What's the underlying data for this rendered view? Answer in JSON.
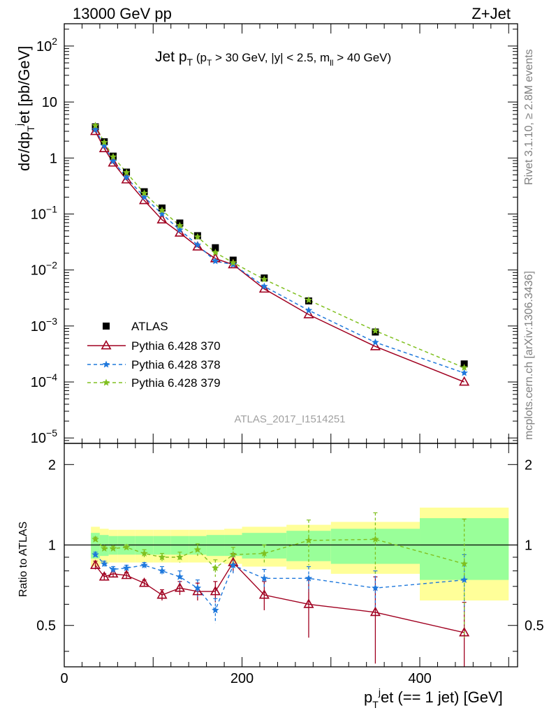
{
  "header": {
    "left": "13000 GeV pp",
    "right": "Z+Jet"
  },
  "plot_title": {
    "main": "Jet p",
    "main_sub": "T",
    "cuts_1": " (p",
    "cuts_1_sub": "T",
    "cuts_2": " > 30 GeV, |y| < 2.5, m",
    "cuts_2_sub": "ll",
    "cuts_3": " > 40 GeV)"
  },
  "side_labels": {
    "rivet": "Rivet 3.1.10, ≥ 2.8M events",
    "mcplots": "mcplots.cern.ch [arXiv:1306.3436]"
  },
  "watermark": "ATLAS_2017_I1514251",
  "y_axis_top": {
    "p1": "dσ/dp",
    "p1_sub": "T",
    "p1_sup": "j",
    "p2": "et [pb/GeV]"
  },
  "y_axis_bottom": "Ratio to ATLAS",
  "x_axis": {
    "p1": "p",
    "p1_sub": "T",
    "p1_sup": "j",
    "p2": "et (== 1 jet) [GeV]"
  },
  "top_ticks": [
    {
      "base": "10",
      "exp": "2"
    },
    {
      "base": "10",
      "exp": ""
    },
    {
      "base": "1",
      "exp": ""
    },
    {
      "base": "10",
      "exp": "−1"
    },
    {
      "base": "10",
      "exp": "−2"
    },
    {
      "base": "10",
      "exp": "−3"
    },
    {
      "base": "10",
      "exp": "−4"
    },
    {
      "base": "10",
      "exp": "−5"
    }
  ],
  "ratio_ticks": [
    "2",
    "1",
    "0.5"
  ],
  "x_ticks": [
    "0",
    "200",
    "400"
  ],
  "legend": [
    {
      "label": "ATLAS"
    },
    {
      "label": "Pythia 6.428 370"
    },
    {
      "label": "Pythia 6.428 378"
    },
    {
      "label": "Pythia 6.428 379"
    }
  ],
  "colors": {
    "data": "#000000",
    "p370": "#a00020",
    "p378": "#1e78dc",
    "p379": "#80c020",
    "band_inner": "#99ff99",
    "band_outer": "#ffff99"
  },
  "chart_data": {
    "type": "scatter",
    "x_scale": "linear",
    "y_scale_main": "log",
    "y_scale_ratio": "log",
    "xlim": [
      0,
      510
    ],
    "ylim_main": [
      8e-06,
      250
    ],
    "ylim_ratio": [
      0.35,
      2.4
    ],
    "x": [
      35,
      45,
      55,
      70,
      90,
      110,
      130,
      150,
      170,
      190,
      225,
      275,
      350,
      450
    ],
    "x_edges": [
      30,
      40,
      50,
      60,
      80,
      100,
      120,
      140,
      160,
      180,
      200,
      250,
      300,
      400,
      500
    ],
    "series": [
      {
        "name": "ATLAS",
        "y": [
          3.6,
          1.95,
          1.08,
          0.56,
          0.25,
          0.128,
          0.069,
          0.041,
          0.025,
          0.015,
          0.0072,
          0.0028,
          0.00078,
          0.00021
        ],
        "ratio_band_inner": [
          0.11,
          0.09,
          0.08,
          0.08,
          0.08,
          0.08,
          0.08,
          0.08,
          0.09,
          0.09,
          0.11,
          0.13,
          0.15,
          0.26
        ],
        "ratio_band_outer": [
          0.17,
          0.15,
          0.14,
          0.14,
          0.14,
          0.14,
          0.14,
          0.14,
          0.14,
          0.15,
          0.17,
          0.19,
          0.22,
          0.38
        ]
      },
      {
        "name": "Pythia 6.428 370",
        "y": [
          3.0,
          1.48,
          0.82,
          0.41,
          0.175,
          0.079,
          0.046,
          0.026,
          0.016,
          0.0125,
          0.0046,
          0.0016,
          0.00043,
          0.0001
        ],
        "ratio": [
          0.84,
          0.76,
          0.78,
          0.77,
          0.72,
          0.65,
          0.69,
          0.67,
          0.67,
          0.86,
          0.65,
          0.6,
          0.56,
          0.47
        ],
        "ratio_err": [
          0.03,
          0.02,
          0.02,
          0.02,
          0.02,
          0.03,
          0.04,
          0.05,
          0.06,
          0.07,
          0.08,
          0.15,
          0.2,
          0.14
        ]
      },
      {
        "name": "Pythia 6.428 378",
        "y": [
          3.2,
          1.65,
          0.88,
          0.45,
          0.2,
          0.1,
          0.052,
          0.028,
          0.0144,
          0.0125,
          0.0051,
          0.0019,
          0.00051,
          0.000145
        ],
        "ratio": [
          0.92,
          0.85,
          0.81,
          0.82,
          0.84,
          0.8,
          0.76,
          0.69,
          0.57,
          0.84,
          0.75,
          0.75,
          0.69,
          0.74
        ],
        "ratio_err": [
          0.02,
          0.02,
          0.02,
          0.02,
          0.02,
          0.03,
          0.04,
          0.05,
          0.06,
          0.07,
          0.06,
          0.08,
          0.11,
          0.18
        ]
      },
      {
        "name": "Pythia 6.428 379",
        "y": [
          3.8,
          1.9,
          1.05,
          0.55,
          0.235,
          0.116,
          0.062,
          0.039,
          0.0205,
          0.0135,
          0.0068,
          0.0029,
          0.00082,
          0.00018
        ],
        "ratio": [
          1.05,
          0.97,
          0.97,
          0.98,
          0.93,
          0.9,
          0.9,
          0.96,
          0.82,
          0.92,
          0.93,
          1.04,
          1.05,
          0.85
        ],
        "ratio_err": [
          0.02,
          0.02,
          0.02,
          0.02,
          0.03,
          0.03,
          0.04,
          0.05,
          0.06,
          0.06,
          0.07,
          0.2,
          0.27,
          0.4
        ]
      }
    ]
  }
}
